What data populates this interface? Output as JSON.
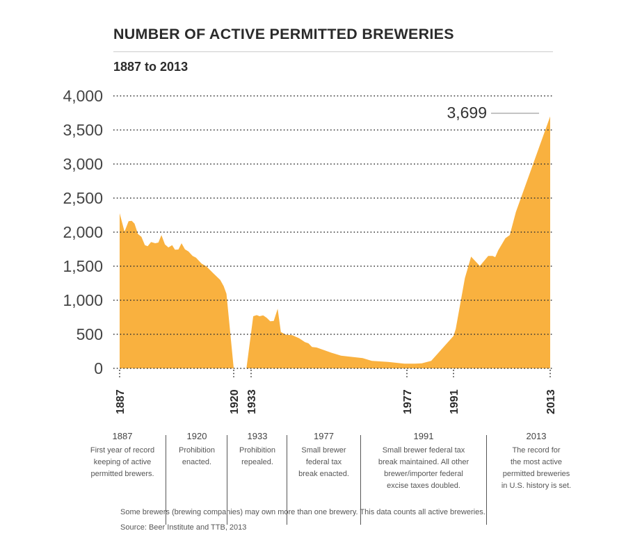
{
  "title": "NUMBER OF ACTIVE PERMITTED BREWERIES",
  "subtitle": "1887 to 2013",
  "chart_data": {
    "type": "area",
    "title": "NUMBER OF ACTIVE PERMITTED BREWERIES",
    "subtitle": "1887 to 2013",
    "xlabel": "",
    "ylabel": "",
    "ylim": [
      0,
      4000
    ],
    "yticks": [
      0,
      500,
      1000,
      1500,
      2000,
      2500,
      3000,
      3500,
      4000
    ],
    "ytick_labels": [
      "0",
      "500",
      "1,000",
      "1,500",
      "2,000",
      "2,500",
      "3,000",
      "3,500",
      "4,000"
    ],
    "xticks": [
      1887,
      1920,
      1933,
      1977,
      1991,
      2013
    ],
    "xtick_labels": [
      "1887",
      "1920",
      "1933",
      "1977",
      "1991",
      "2013"
    ],
    "grid": "horizontal dotted",
    "color": "#f9b13f",
    "annotation": {
      "label": "3,699",
      "year": 2013,
      "value": 3699
    },
    "x": [
      1887,
      1888.4,
      1889.6,
      1890.5,
      1891.3,
      1892.3,
      1893.3,
      1894.3,
      1895.1,
      1896.1,
      1897.3,
      1898.2,
      1899.1,
      1900.1,
      1901.1,
      1902.2,
      1903,
      1904,
      1904.9,
      1905.9,
      1906.9,
      1908.1,
      1909.1,
      1910.7,
      1912.1,
      1914.1,
      1916.1,
      1917.1,
      1917.9,
      1920,
      1929.5,
      1933.6,
      1934.6,
      1935.4,
      1936.4,
      1937.4,
      1938.4,
      1939.4,
      1940.5,
      1941.4,
      1942.9,
      1944.6,
      1946.6,
      1948.2,
      1949.2,
      1950.2,
      1951.5,
      1955.8,
      1958.4,
      1964.5,
      1967.1,
      1971.7,
      1976.3,
      1979.4,
      1981.5,
      1984.3,
      1991,
      1991.5,
      1993.6,
      1995,
      1997,
      1998.9,
      1999.9,
      2000.5,
      2001.2,
      2002.8,
      2003.8,
      2005.2,
      2013
    ],
    "values": [
      2279,
      2007,
      2160,
      2166,
      2126,
      1973,
      1932,
      1809,
      1793,
      1854,
      1837,
      1847,
      1956,
      1820,
      1776,
      1809,
      1742,
      1745,
      1837,
      1748,
      1717,
      1650,
      1626,
      1538,
      1497,
      1395,
      1299,
      1207,
      1095,
      0,
      0,
      765,
      782,
      765,
      779,
      742,
      691,
      697,
      874,
      534,
      493,
      487,
      442,
      385,
      367,
      313,
      306,
      228,
      187,
      150,
      109,
      95,
      68,
      68,
      74,
      109,
      476,
      578,
      1327,
      1640,
      1503,
      1650,
      1650,
      1633,
      1735,
      1911,
      1956,
      2296,
      3699
    ]
  },
  "annotations": [
    {
      "year": "1887",
      "text": [
        "First year of record",
        "keeping of active",
        "permitted brewers."
      ]
    },
    {
      "year": "1920",
      "text": [
        "Prohibition",
        "enacted."
      ]
    },
    {
      "year": "1933",
      "text": [
        "Prohibition",
        "repealed."
      ]
    },
    {
      "year": "1977",
      "text": [
        "Small brewer",
        "federal tax",
        "break enacted."
      ]
    },
    {
      "year": "1991",
      "text": [
        "Small brewer federal tax",
        "break maintained. All other",
        "brewer/importer federal",
        "excise taxes doubled."
      ]
    },
    {
      "year": "2013",
      "text": [
        "The record for",
        "the most active",
        "permitted breweries",
        "in U.S. history is set."
      ]
    }
  ],
  "footnote": "Some brewers (brewing companies) may own more than one brewery. This data counts all active breweries.",
  "source": "Source: Beer Institute and TTB, 2013"
}
